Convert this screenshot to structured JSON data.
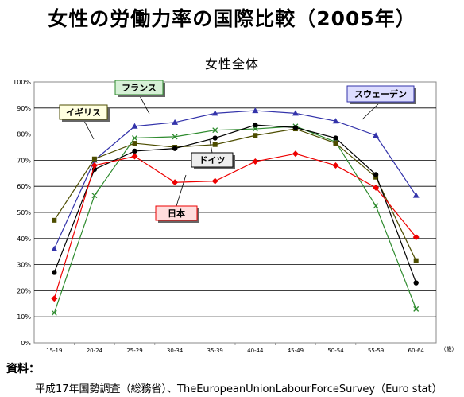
{
  "title": "女性の労働力率の国際比較（2005年）",
  "source_label": "資料：",
  "source_text": "平成17年国勢調査（総務省）、TheEuropeanUnionLabourForceSurvey（Euro stat）",
  "chart_data": {
    "type": "line",
    "title": "女性全体",
    "xlabel": "",
    "x_unit": "（歳）",
    "ylabel": "",
    "ylim": [
      0,
      100
    ],
    "yticks": [
      "0%",
      "10%",
      "20%",
      "30%",
      "40%",
      "50%",
      "60%",
      "70%",
      "80%",
      "90%",
      "100%"
    ],
    "grid": true,
    "categories": [
      "15-19",
      "20-24",
      "25-29",
      "30-34",
      "35-39",
      "40-44",
      "45-49",
      "50-54",
      "55-59",
      "60-64"
    ],
    "series": [
      {
        "name": "スウェーデン",
        "color": "#3333aa",
        "marker": "triangle",
        "label_bg": "#ddddff",
        "values": [
          36,
          70,
          83,
          84.5,
          88,
          89,
          88,
          85,
          79.5,
          56.5
        ]
      },
      {
        "name": "フランス",
        "color": "#2e8b2e",
        "marker": "x",
        "label_bg": "#d6f0d6",
        "values": [
          11.5,
          56.5,
          78.5,
          79,
          81.5,
          82,
          83,
          77,
          52.5,
          13
        ]
      },
      {
        "name": "イギリス",
        "color": "#4d4d00",
        "marker": "square",
        "label_bg": "#ffffe0",
        "values": [
          47,
          70.5,
          76.5,
          75,
          76,
          79.5,
          82,
          76.5,
          63.5,
          31.5
        ]
      },
      {
        "name": "ドイツ",
        "color": "#000000",
        "marker": "circle",
        "label_bg": "#eeeeee",
        "values": [
          27,
          66.5,
          73.5,
          74.5,
          78.5,
          83.5,
          82.5,
          78.5,
          64.5,
          23
        ]
      },
      {
        "name": "日本",
        "color": "#ee0000",
        "marker": "diamond",
        "label_bg": "#ffdddd",
        "values": [
          17,
          68,
          71.5,
          61.5,
          62,
          69.5,
          72.5,
          68,
          59.5,
          40.5
        ]
      }
    ]
  }
}
